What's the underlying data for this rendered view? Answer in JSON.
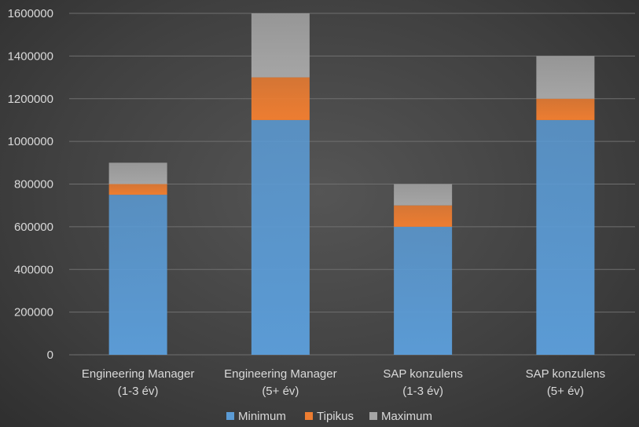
{
  "chart_data": {
    "type": "bar",
    "stacked": true,
    "categories": [
      [
        "Engineering Manager",
        "(1-3 év)"
      ],
      [
        "Engineering Manager",
        "(5+ év)"
      ],
      [
        "SAP konzulens",
        "(1-3 év)"
      ],
      [
        "SAP konzulens",
        "(5+ év)"
      ]
    ],
    "series": [
      {
        "name": "Minimum",
        "color": "#5b9bd5",
        "values": [
          750000,
          1100000,
          600000,
          1100000
        ]
      },
      {
        "name": "Tipikus",
        "color": "#ed7d31",
        "values": [
          50000,
          200000,
          100000,
          100000
        ]
      },
      {
        "name": "Maximum",
        "color": "#a5a5a5",
        "values": [
          100000,
          300000,
          100000,
          200000
        ]
      }
    ],
    "ylim": [
      0,
      1600000
    ],
    "yticks": [
      "0",
      "200000",
      "400000",
      "600000",
      "800000",
      "1000000",
      "1200000",
      "1400000",
      "1600000"
    ],
    "grid": true,
    "legend_position": "bottom"
  }
}
